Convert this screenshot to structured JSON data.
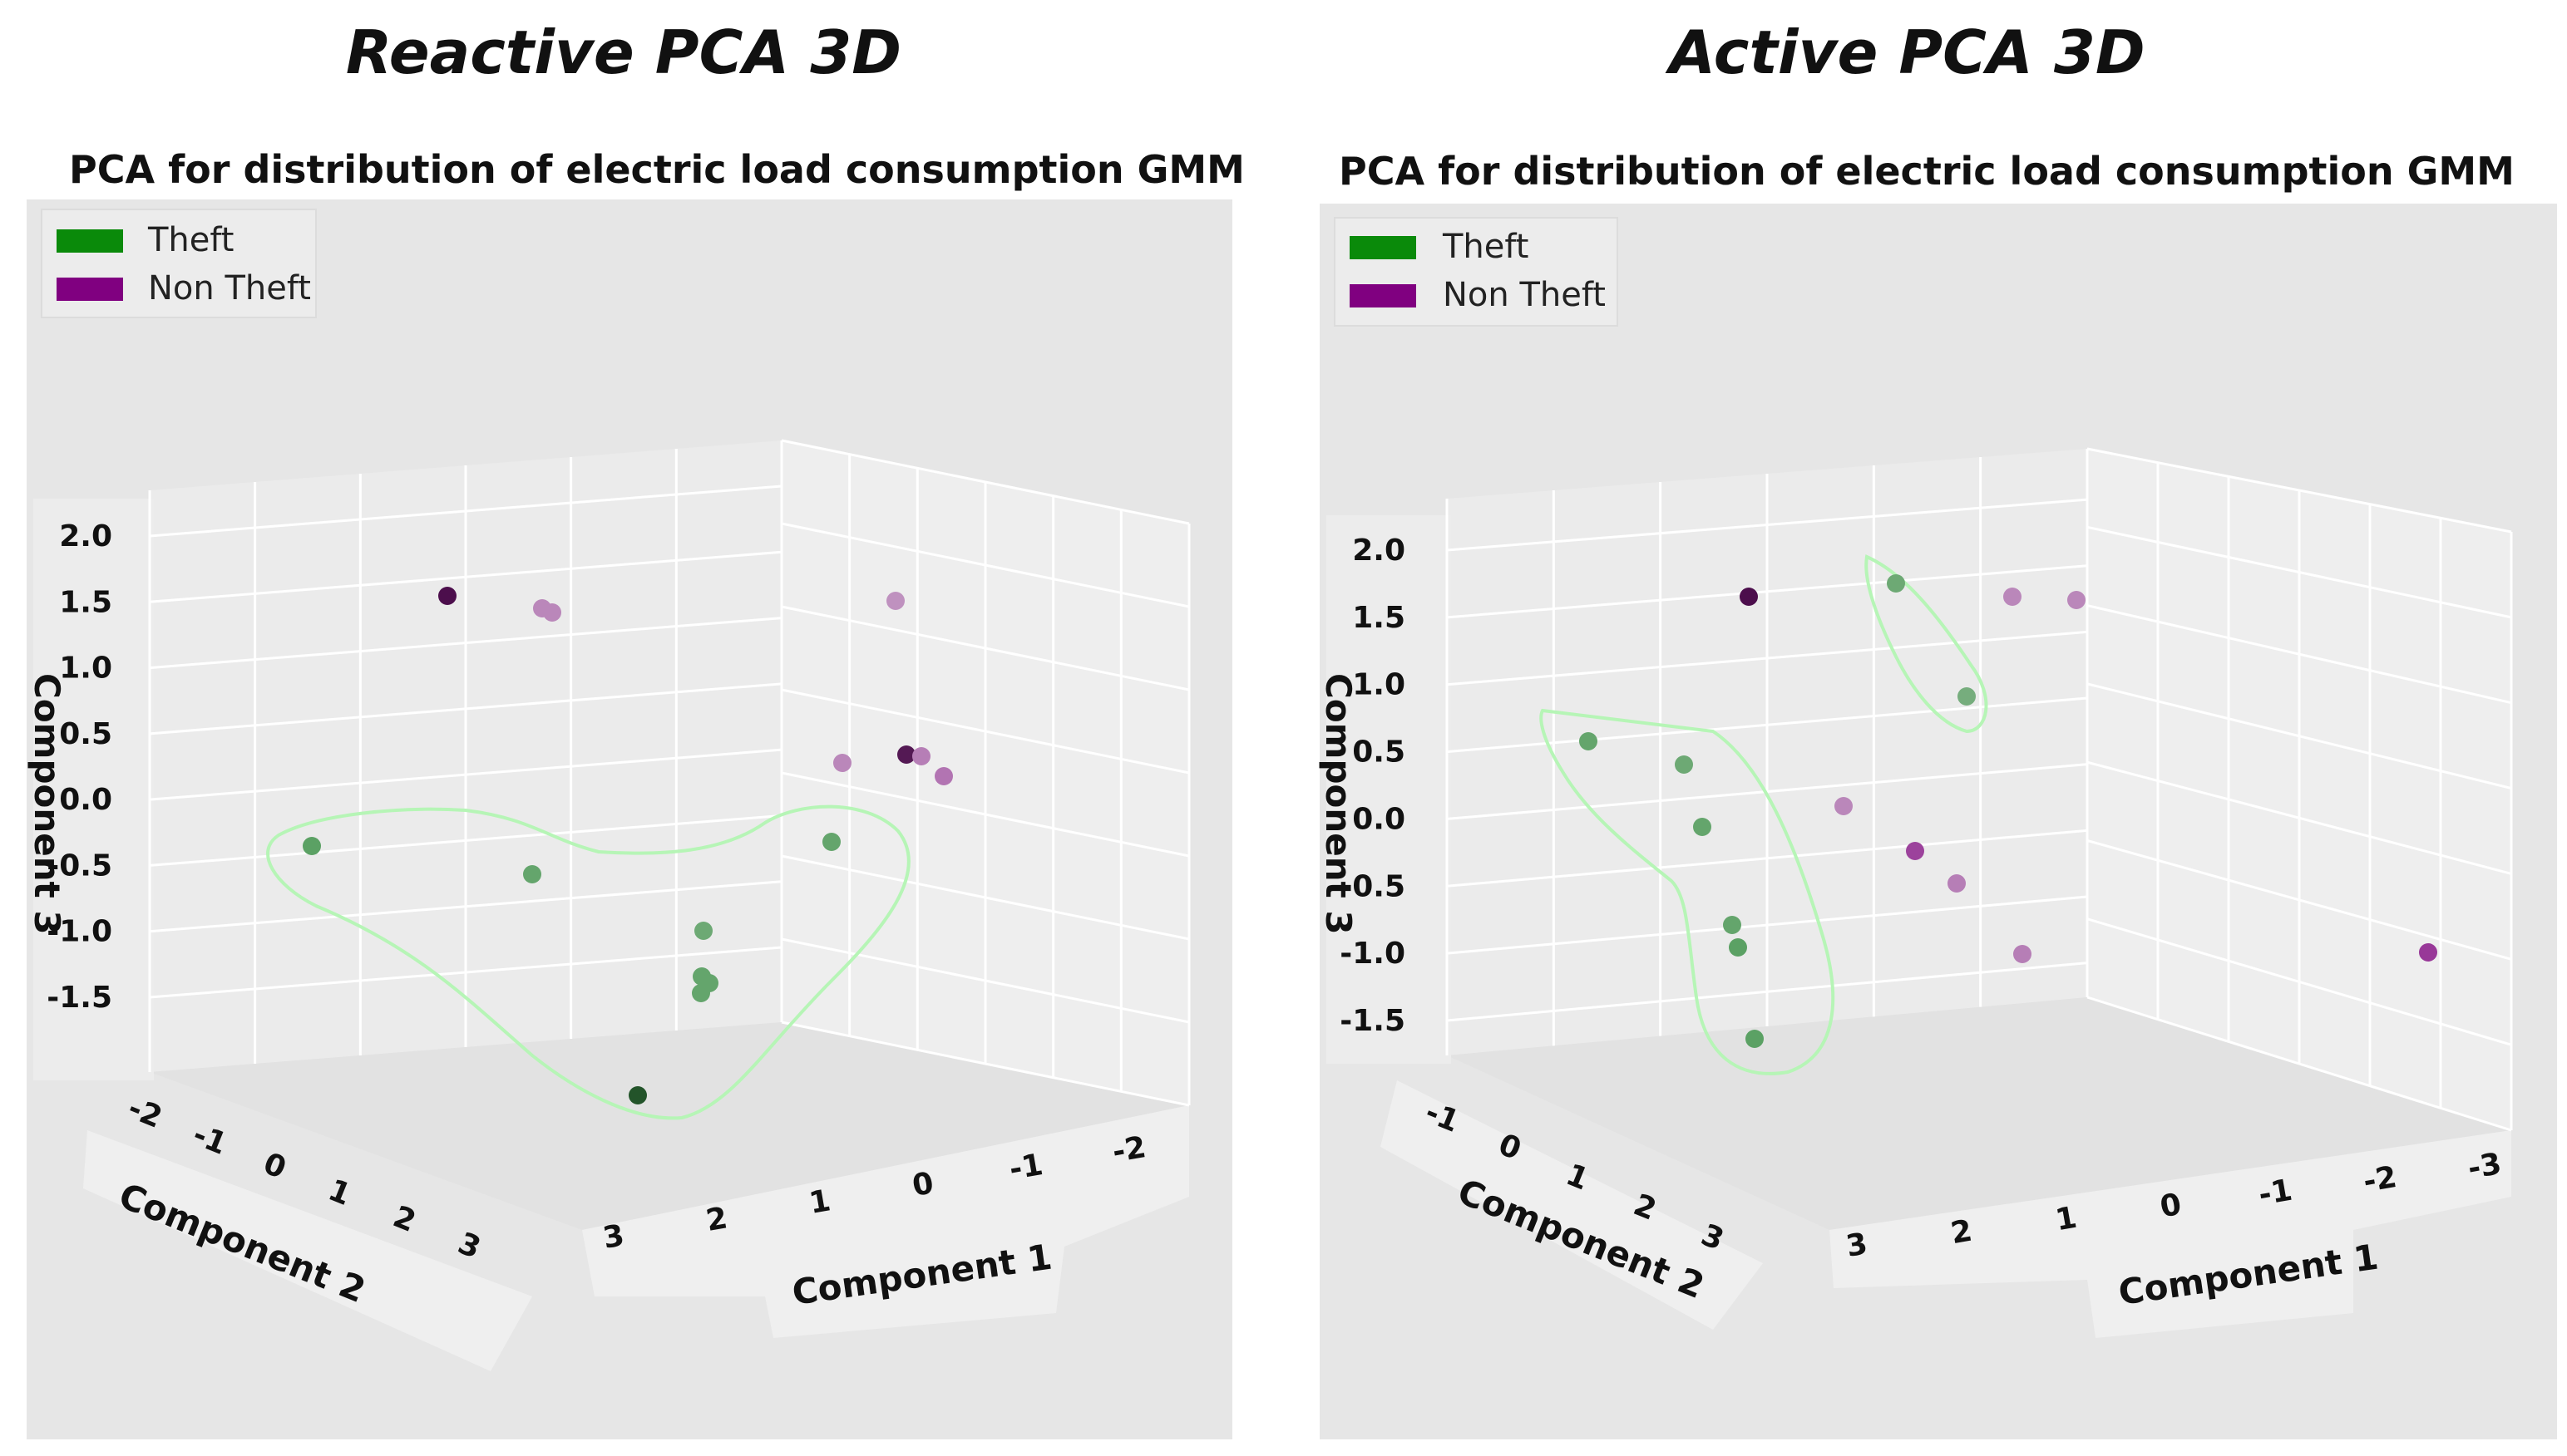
{
  "chart_data": [
    {
      "type": "scatter",
      "title": "Reactive PCA 3D",
      "subtitle": "PCA for distribution of electric load consumption  GMM",
      "xlabel": "Component  1",
      "ylabel": "Component 2",
      "zlabel": "Component 3",
      "x_ticks": [
        "3",
        "2",
        "1",
        "0",
        "-1",
        "-2"
      ],
      "y_ticks": [
        "-2",
        "-1",
        "0",
        "1",
        "2",
        "3"
      ],
      "z_ticks": [
        "2.0",
        "1.5",
        "1.0",
        "0.5",
        "0.0",
        "-0.5",
        "-1.0",
        "-1.5"
      ],
      "grid": true,
      "legend_position": "top-left",
      "series": [
        {
          "name": "Theft",
          "color": "#2e8b3a",
          "points_z": [
            -0.3,
            -0.5,
            -0.3,
            -1.0,
            -1.3,
            -1.35,
            -1.4,
            -2.1
          ]
        },
        {
          "name": "Non Theft",
          "color": "#8b1a8b",
          "points_z": [
            1.6,
            1.5,
            1.5,
            1.55,
            0.35,
            0.4,
            0.4,
            0.25
          ]
        }
      ],
      "points": [
        {
          "series": "Theft",
          "z": -0.3,
          "shade": 0.75
        },
        {
          "series": "Theft",
          "z": -0.5,
          "shade": 0.7
        },
        {
          "series": "Theft",
          "z": -0.3,
          "shade": 0.7
        },
        {
          "series": "Theft",
          "z": -1.0,
          "shade": 0.65
        },
        {
          "series": "Theft",
          "z": -1.3,
          "shade": 0.7
        },
        {
          "series": "Theft",
          "z": -1.35,
          "shade": 0.7
        },
        {
          "series": "Theft",
          "z": -1.4,
          "shade": 0.7
        },
        {
          "series": "Theft",
          "z": -2.1,
          "shade": 0.95
        },
        {
          "series": "Non Theft",
          "z": 1.6,
          "shade": 1.0
        },
        {
          "series": "Non Theft",
          "z": 1.5,
          "shade": 0.45
        },
        {
          "series": "Non Theft",
          "z": 1.5,
          "shade": 0.45
        },
        {
          "series": "Non Theft",
          "z": 1.55,
          "shade": 0.4
        },
        {
          "series": "Non Theft",
          "z": 0.35,
          "shade": 0.45
        },
        {
          "series": "Non Theft",
          "z": 0.4,
          "shade": 0.95
        },
        {
          "series": "Non Theft",
          "z": 0.4,
          "shade": 0.5
        },
        {
          "series": "Non Theft",
          "z": 0.25,
          "shade": 0.55
        }
      ]
    },
    {
      "type": "scatter",
      "title": "Active PCA 3D",
      "subtitle": "PCA for distribution of electric load consumption  GMM",
      "xlabel": "Component  1",
      "ylabel": "Component 2",
      "zlabel": "Component 3",
      "x_ticks": [
        "3",
        "2",
        "1",
        "0",
        "-1",
        "-2",
        "-3"
      ],
      "y_ticks": [
        "-1",
        "0",
        "1",
        "2",
        "3"
      ],
      "z_ticks": [
        "2.0",
        "1.5",
        "1.0",
        "0.5",
        "0.0",
        "-0.5",
        "-1.0",
        "-1.5"
      ],
      "grid": true,
      "legend_position": "top-left",
      "series": [
        {
          "name": "Theft",
          "color": "#2e8b3a",
          "points_z": [
            1.7,
            0.9,
            0.6,
            0.4,
            0.0,
            -0.8,
            -1.0,
            -1.7
          ]
        },
        {
          "name": "Non Theft",
          "color": "#8b1a8b",
          "points_z": [
            1.6,
            1.6,
            1.6,
            0.1,
            -0.25,
            -0.5,
            -1.0,
            -1.0
          ]
        }
      ],
      "points": [
        {
          "series": "Theft",
          "z": 1.7,
          "shade": 0.65
        },
        {
          "series": "Theft",
          "z": 0.9,
          "shade": 0.6
        },
        {
          "series": "Theft",
          "z": 0.6,
          "shade": 0.7
        },
        {
          "series": "Theft",
          "z": 0.4,
          "shade": 0.65
        },
        {
          "series": "Theft",
          "z": 0.0,
          "shade": 0.7
        },
        {
          "series": "Theft",
          "z": -0.8,
          "shade": 0.7
        },
        {
          "series": "Theft",
          "z": -1.0,
          "shade": 0.75
        },
        {
          "series": "Theft",
          "z": -1.7,
          "shade": 0.75
        },
        {
          "series": "Non Theft",
          "z": 1.6,
          "shade": 1.0
        },
        {
          "series": "Non Theft",
          "z": 1.6,
          "shade": 0.45
        },
        {
          "series": "Non Theft",
          "z": 1.6,
          "shade": 0.45
        },
        {
          "series": "Non Theft",
          "z": 0.1,
          "shade": 0.45
        },
        {
          "series": "Non Theft",
          "z": -0.25,
          "shade": 0.8
        },
        {
          "series": "Non Theft",
          "z": -0.5,
          "shade": 0.5
        },
        {
          "series": "Non Theft",
          "z": -1.0,
          "shade": 0.5
        },
        {
          "series": "Non Theft",
          "z": -1.0,
          "shade": 0.85
        }
      ]
    }
  ]
}
